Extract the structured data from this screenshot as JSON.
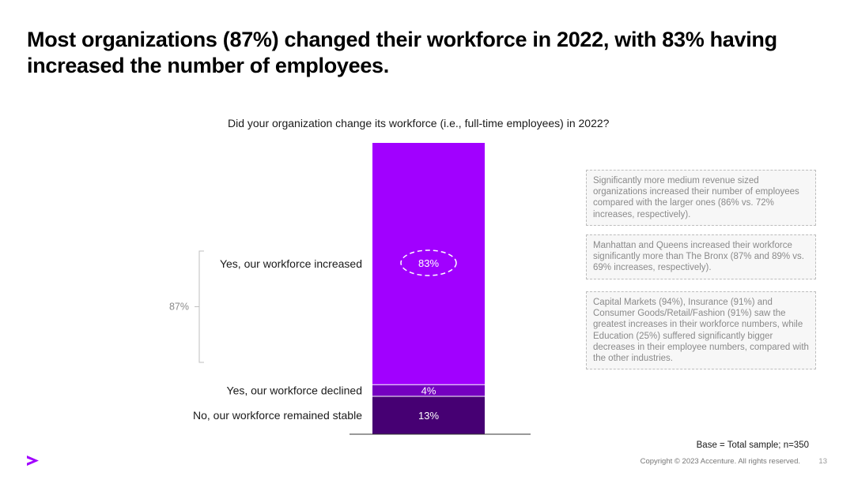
{
  "slide": {
    "title": "Most organizations (87%) changed their workforce in 2022, with 83% having increased the number of employees.",
    "question": "Did your organization change its workforce (i.e., full-time employees) in 2022?",
    "callouts": [
      "Significantly more medium revenue sized organizations increased their number of employees compared with the larger ones (86% vs. 72% increases, respectively).",
      "Manhattan and Queens increased their workforce significantly more than The Bronx (87% and 89% vs. 69% increases, respectively).",
      "Capital Markets (94%), Insurance (91%) and Consumer Goods/Retail/Fashion (91%) saw the greatest increases in their workforce numbers, while Education (25%) suffered significantly bigger decreases in their employee numbers, compared with the other industries."
    ],
    "base_note": "Base = Total sample; n=350",
    "copyright": "Copyright © 2023 Accenture. All rights reserved.",
    "page_number": "13",
    "logo_glyph": ">"
  },
  "chart_data": {
    "type": "bar",
    "stacked": true,
    "title": "Did your organization change its workforce (i.e., full-time employees) in 2022?",
    "unit": "%",
    "ylim": [
      0,
      100
    ],
    "segments": [
      {
        "label": "No, our workforce remained stable",
        "value": 13,
        "display": "13%",
        "color": "#460073"
      },
      {
        "label": "Yes, our workforce declined",
        "value": 4,
        "display": "4%",
        "color": "#7500c0"
      },
      {
        "label": "Yes, our workforce increased",
        "value": 83,
        "display": "83%",
        "color": "#a100ff",
        "highlight": true
      }
    ],
    "bracket": {
      "value": 87,
      "display": "87%",
      "covers": [
        "Yes, our workforce increased",
        "Yes, our workforce declined"
      ]
    },
    "colors": {
      "bracket": "#bfbfbf",
      "bracket_text": "#8a8a8a",
      "baseline": "#333333",
      "highlight_ring": "#ffffff"
    }
  }
}
